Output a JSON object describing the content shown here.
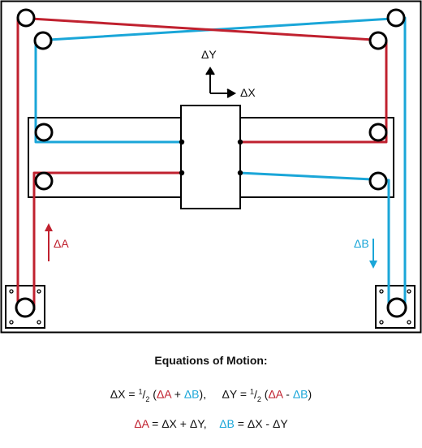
{
  "labels": {
    "dy": "ΔY",
    "dx": "ΔX",
    "da": "ΔA",
    "db": "ΔB"
  },
  "colors": {
    "belt_a": "#c0212f",
    "belt_b": "#1aa6d8",
    "frame": "#000000"
  },
  "equations": {
    "title": "Equations of Motion:",
    "dx_lhs": "ΔX = ",
    "half_num": "1",
    "half_slash": "/",
    "half_den": "2",
    "open_paren": " (",
    "da": "ΔA",
    "plus": " + ",
    "db": "ΔB",
    "close_sep": "),",
    "dy_lhs": "ΔY = ",
    "minus": " - ",
    "close_paren": ")",
    "da2": "ΔA",
    "da_rhs": " = ΔX + ΔY,",
    "db2": "ΔB",
    "db_rhs": " = ΔX - ΔY"
  }
}
